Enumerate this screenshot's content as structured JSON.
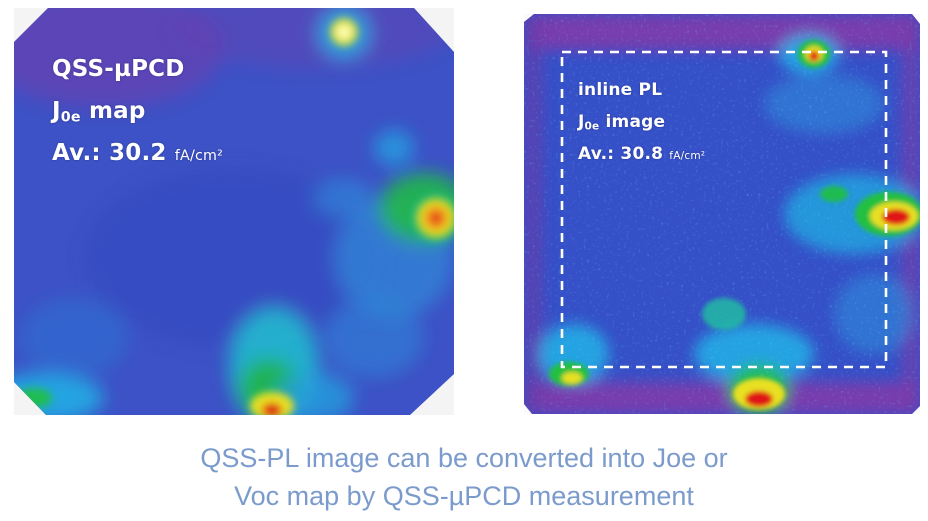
{
  "left_panel": {
    "line1": "QSS-µPCD",
    "line2_main": "J",
    "line2_sub": "0e",
    "line2_rest": " map",
    "line3_prefix": "Av.: 30.2 ",
    "line3_unit": "fA/cm²"
  },
  "right_panel": {
    "line1": "inline PL",
    "line2_main": "J",
    "line2_sub": "0e",
    "line2_rest": " image",
    "line3_prefix": "Av.: 30.8 ",
    "line3_unit": "fA/cm²"
  },
  "caption": {
    "line1": "QSS-PL image can be converted into Joe or",
    "line2": "Voc map by QSS-µPCD measurement"
  },
  "colors": {
    "map_background": "#3a4fc8",
    "caption": "#7b9bcc",
    "hot": "#e01818",
    "warm": "#f0e020",
    "mid": "#20c040",
    "cool": "#20b8e8",
    "edge": "#7a3aa8"
  }
}
